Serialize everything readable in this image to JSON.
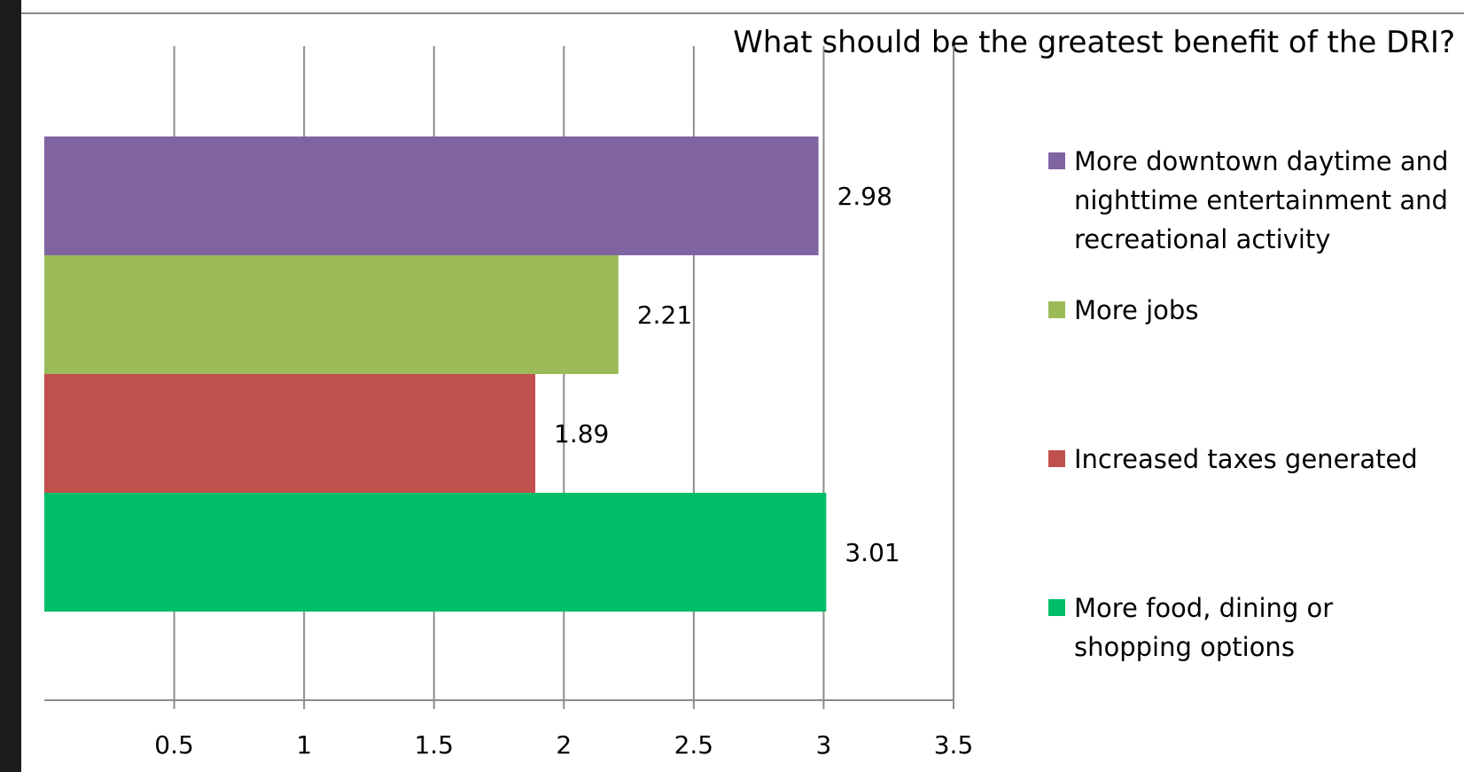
{
  "chart_data": {
    "type": "bar",
    "orientation": "horizontal",
    "title": "What should be the greatest benefit of the DRI?",
    "xlabel": "",
    "ylabel": "",
    "xlim": [
      0,
      3.5
    ],
    "x_ticks": [
      "0.5",
      "1",
      "1.5",
      "2",
      "2.5",
      "3",
      "3.5"
    ],
    "grid": "vertical",
    "legend_position": "right",
    "categories": [
      "More downtown daytime and nighttime entertainment and recreational activity",
      "More jobs",
      "Increased taxes generated",
      "More food, dining or shopping options"
    ],
    "values": [
      2.98,
      2.21,
      1.89,
      3.01
    ],
    "data_labels": [
      "2.98",
      "2.21",
      "1.89",
      "3.01"
    ],
    "colors": [
      "#8064a2",
      "#9bbb59",
      "#c0504d",
      "#00bd6a"
    ]
  }
}
